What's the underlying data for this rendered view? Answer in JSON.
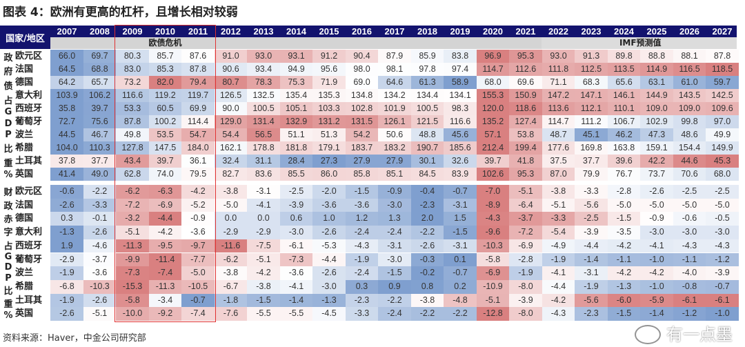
{
  "title": "图表 4：欧洲有更高的杠杆，且增长相对较弱",
  "source": "资料来源：Haver，中金公司研究部",
  "watermark": "有一点墨",
  "colors": {
    "header": "#13136e",
    "high_red": "#d98080",
    "low_blue": "#7f9fcf",
    "highlight_box": "#e03030"
  },
  "chart_data": {
    "type": "table",
    "corner_label": "国家/地区",
    "years": [
      "2007",
      "2008",
      "2009",
      "2010",
      "2011",
      "2012",
      "2013",
      "2014",
      "2015",
      "2016",
      "2017",
      "2018",
      "2019",
      "2020",
      "2021",
      "2022",
      "2023",
      "2024",
      "2025",
      "2026",
      "2027"
    ],
    "bands": [
      {
        "label": "欧债危机",
        "from": "2009",
        "to": "2011"
      },
      {
        "label": "IMF预测值",
        "from": "2022",
        "to": "2027"
      }
    ],
    "sections": [
      {
        "label": "政府债占GDP比重%",
        "label_chars": [
          "政",
          "府",
          "债",
          "占",
          "G",
          "D",
          "P",
          "比",
          "重",
          "%"
        ],
        "higher_is_red": true,
        "rows": [
          {
            "name": "欧元区",
            "values": [
              66.0,
              69.7,
              80.3,
              85.7,
              87.6,
              91.0,
              93.0,
              93.1,
              91.2,
              90.4,
              87.9,
              85.9,
              83.8,
              96.9,
              95.3,
              93.0,
              91.3,
              89.8,
              88.8,
              88.1,
              87.8
            ]
          },
          {
            "name": "法国",
            "values": [
              64.5,
              68.8,
              83.0,
              85.3,
              87.8,
              90.6,
              93.4,
              94.9,
              95.6,
              98.0,
              98.1,
              97.8,
              97.4,
              114.7,
              112.6,
              111.8,
              112.5,
              113.5,
              114.9,
              116.5,
              118.5
            ]
          },
          {
            "name": "德国",
            "values": [
              64.2,
              65.7,
              73.2,
              82.0,
              79.4,
              80.7,
              78.3,
              75.3,
              71.9,
              69.0,
              64.6,
              61.3,
              58.9,
              68.0,
              69.6,
              71.1,
              68.3,
              65.6,
              63.1,
              61.0,
              59.7
            ]
          },
          {
            "name": "意大利",
            "values": [
              103.9,
              106.2,
              116.6,
              119.2,
              119.7,
              126.5,
              132.5,
              135.4,
              135.3,
              134.8,
              134.2,
              134.4,
              134.1,
              155.3,
              150.9,
              147.2,
              147.1,
              146.1,
              144.9,
              143.5,
              142.5
            ]
          },
          {
            "name": "西班牙",
            "values": [
              35.8,
              39.7,
              53.3,
              60.5,
              69.9,
              90.0,
              100.5,
              105.1,
              103.3,
              102.8,
              101.9,
              100.5,
              98.3,
              120.0,
              118.6,
              113.6,
              112.1,
              110.1,
              109.0,
              109.0,
              109.6
            ]
          },
          {
            "name": "葡萄牙",
            "values": [
              72.7,
              75.6,
              87.8,
              100.2,
              114.4,
              129.0,
              131.4,
              132.9,
              131.2,
              131.5,
              126.1,
              121.5,
              116.6,
              135.2,
              127.4,
              114.7,
              111.2,
              106.7,
              102.9,
              99.8,
              97.0
            ]
          },
          {
            "name": "波兰",
            "values": [
              44.5,
              46.7,
              49.8,
              53.5,
              54.7,
              54.4,
              56.5,
              51.1,
              51.3,
              54.2,
              50.6,
              48.8,
              45.6,
              57.1,
              53.8,
              48.7,
              45.1,
              46.2,
              47.3,
              48.6,
              49.9
            ]
          },
          {
            "name": "希腊",
            "values": [
              104.0,
              110.3,
              127.8,
              147.5,
              184.0,
              162.1,
              178.8,
              181.8,
              179.1,
              183.7,
              183.2,
              190.7,
              185.6,
              212.4,
              199.4,
              177.6,
              169.8,
              163.8,
              159.1,
              154.4,
              149.9
            ]
          },
          {
            "name": "土耳其",
            "values": [
              37.8,
              37.7,
              43.4,
              39.7,
              36.1,
              32.4,
              31.1,
              28.4,
              27.3,
              27.9,
              27.9,
              30.1,
              32.6,
              39.7,
              41.8,
              37.5,
              37.7,
              39.6,
              42.2,
              44.6,
              45.3
            ]
          },
          {
            "name": "英国",
            "values": [
              41.4,
              49.0,
              62.8,
              74.0,
              79.5,
              82.7,
              83.6,
              85.5,
              86.0,
              85.8,
              85.1,
              84.5,
              83.9,
              102.6,
              95.3,
              87.0,
              79.9,
              76.7,
              73.7,
              70.6,
              68.0
            ]
          }
        ]
      },
      {
        "label": "财政赤字占GDP比重%",
        "label_chars": [
          "财",
          "政",
          "赤",
          "字",
          "占",
          "G",
          "D",
          "P",
          "比",
          "重",
          "%"
        ],
        "higher_is_red": false,
        "rows": [
          {
            "name": "欧元区",
            "values": [
              -0.6,
              -2.2,
              -6.2,
              -6.3,
              -4.2,
              -3.8,
              -3.1,
              -2.5,
              -2.0,
              -1.5,
              -0.9,
              -0.4,
              -0.7,
              -7.0,
              -5.1,
              -3.8,
              -3.3,
              -2.8,
              -2.6,
              -2.5,
              -2.5
            ]
          },
          {
            "name": "法国",
            "values": [
              -2.6,
              -3.3,
              -7.2,
              -6.9,
              -5.2,
              -5.0,
              -4.1,
              -3.9,
              -3.6,
              -3.6,
              -3.0,
              -2.3,
              -3.1,
              -8.9,
              -6.4,
              -5.1,
              -5.6,
              -5.0,
              -5.0,
              -5.0,
              -5.0
            ]
          },
          {
            "name": "德国",
            "values": [
              0.3,
              -0.1,
              -3.2,
              -4.4,
              -0.9,
              0.0,
              0.0,
              0.6,
              1.0,
              1.2,
              1.3,
              2.0,
              1.5,
              -4.3,
              -3.7,
              -3.3,
              -2.5,
              -1.5,
              -0.9,
              -0.6,
              -0.5
            ]
          },
          {
            "name": "意大利",
            "values": [
              -1.3,
              -2.6,
              -5.1,
              -4.2,
              -3.6,
              -2.9,
              -2.9,
              -3.0,
              -2.6,
              -2.4,
              -2.4,
              -2.2,
              -1.5,
              -9.6,
              -7.2,
              -5.4,
              -3.9,
              -3.5,
              -3.0,
              -3.0,
              -3.0
            ]
          },
          {
            "name": "西班牙",
            "values": [
              1.9,
              -4.6,
              -11.3,
              -9.5,
              -9.7,
              -11.6,
              -7.5,
              -6.1,
              -5.3,
              -4.3,
              -3.1,
              -2.6,
              -3.1,
              -10.3,
              -6.9,
              -4.9,
              -4.4,
              -4.2,
              -4.1,
              -4.3,
              -4.3
            ]
          },
          {
            "name": "葡萄牙",
            "values": [
              -2.9,
              -3.7,
              -9.9,
              -11.4,
              -7.7,
              -6.2,
              -5.1,
              -7.3,
              -4.4,
              -1.9,
              -3.0,
              -0.3,
              0.1,
              -5.8,
              -2.8,
              -1.9,
              -1.4,
              -1.1,
              -1.0,
              -1.1,
              -1.2
            ]
          },
          {
            "name": "波兰",
            "values": [
              -1.9,
              -3.6,
              -7.3,
              -7.4,
              -5.0,
              -3.8,
              -4.2,
              -3.6,
              -2.6,
              -2.4,
              -1.5,
              -0.2,
              -0.7,
              -6.9,
              -1.9,
              -4.1,
              -3.1,
              -4.2,
              -4.2,
              -4.0,
              -3.9
            ]
          },
          {
            "name": "希腊",
            "values": [
              -6.8,
              -10.3,
              -15.3,
              -11.3,
              -10.5,
              -6.7,
              -3.8,
              -4.1,
              -3.0,
              0.3,
              0.9,
              0.8,
              0.2,
              -10.9,
              -8.0,
              -4.4,
              -1.9,
              -1.3,
              -1.0,
              -0.8,
              -0.7
            ]
          },
          {
            "name": "土耳其",
            "values": [
              -1.9,
              -2.6,
              -5.8,
              -3.4,
              -0.7,
              -1.8,
              -1.5,
              -1.4,
              -1.3,
              -2.3,
              -2.2,
              -3.8,
              -4.8,
              -5.1,
              -3.9,
              -4.2,
              -5.6,
              -6.0,
              -5.9,
              -6.1,
              -6.1
            ]
          },
          {
            "name": "英国",
            "values": [
              -2.6,
              -5.1,
              -10.0,
              -9.2,
              -7.4,
              -7.6,
              -5.5,
              -5.5,
              -4.5,
              -3.3,
              -2.4,
              -2.2,
              -2.2,
              -12.8,
              -8.0,
              -4.3,
              -2.3,
              -1.5,
              -1.4,
              -1.2,
              -1.0
            ]
          }
        ]
      }
    ]
  }
}
